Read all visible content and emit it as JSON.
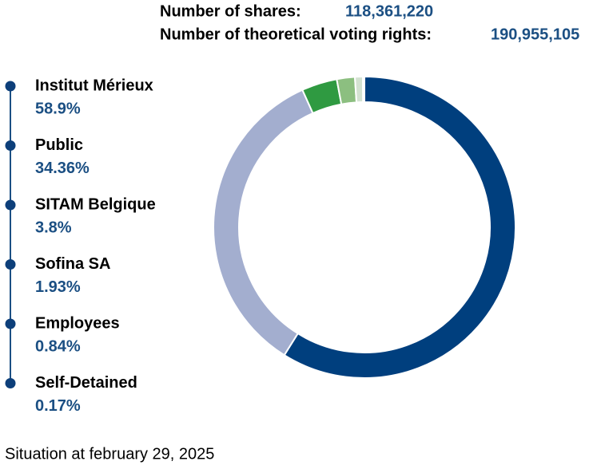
{
  "chart_data": {
    "type": "donut",
    "annotations": [
      {
        "label": "Number of shares:",
        "value": "118,361,220"
      },
      {
        "label": "Number of theoretical voting rights:",
        "value": "190,955,105"
      }
    ],
    "categories": [
      "Institut Mérieux",
      "Public",
      "SITAM Belgique",
      "Sofina SA",
      "Employees",
      "Self-Detained"
    ],
    "values": [
      58.9,
      34.36,
      3.8,
      1.93,
      0.84,
      0.17
    ],
    "value_labels": [
      "58.9%",
      "34.36%",
      "3.8%",
      "1.93%",
      "0.84%",
      "0.17%"
    ],
    "colors": [
      "#003f7e",
      "#a3aecf",
      "#2f9a41",
      "#8cbf80",
      "#d3e2d1",
      "#eef2ee"
    ],
    "footnote": "Situation at february 29, 2025"
  }
}
